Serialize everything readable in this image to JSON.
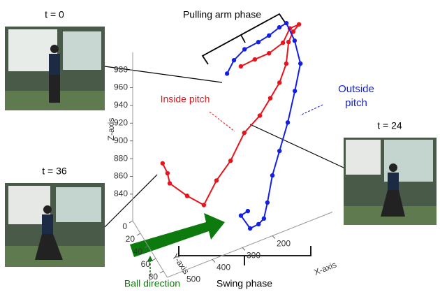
{
  "chart_data": {
    "type": "line3d",
    "xlabel": "X-axis",
    "ylabel": "Y-axis",
    "zlabel": "Z-axis",
    "xlim": [
      0,
      550
    ],
    "ylim": [
      0,
      90
    ],
    "zlim": [
      810,
      1000
    ],
    "xticks": [
      200,
      300,
      400,
      500
    ],
    "yticks": [
      0,
      20,
      40,
      60,
      80
    ],
    "zticks": [
      840,
      860,
      880,
      900,
      920,
      940,
      960,
      980
    ],
    "series": [
      {
        "name": "Inside pitch",
        "color": "#e8141c",
        "x": [
          209,
          169,
          128,
          88,
          78,
          41,
          54,
          63,
          77,
          106,
          143,
          178,
          236,
          288,
          335,
          377,
          420,
          465,
          466,
          476
        ],
        "y": [
          15,
          20,
          25,
          30,
          40,
          35,
          30,
          25,
          30,
          35,
          40,
          40,
          45,
          50,
          50,
          50,
          40,
          30,
          25,
          20
        ],
        "z": [
          949,
          955,
          960,
          970,
          992,
          988,
          978,
          964,
          945,
          931,
          922,
          907,
          899,
          878,
          862,
          840,
          849,
          862,
          870,
          879
        ]
      },
      {
        "name": "Outside pitch",
        "color": "#1420e0",
        "x": [
          255,
          232,
          203,
          157,
          128,
          100,
          83,
          62,
          49,
          74,
          104,
          138,
          168,
          191,
          209,
          227,
          255,
          292,
          269
        ],
        "y": [
          15,
          15,
          20,
          20,
          25,
          30,
          35,
          40,
          45,
          50,
          55,
          60,
          65,
          70,
          75,
          75,
          75,
          80,
          80
        ],
        "z": [
          947,
          959,
          971,
          973,
          980,
          989,
          995,
          976,
          952,
          928,
          900,
          876,
          856,
          832,
          820,
          816,
          815,
          838,
          840
        ]
      }
    ],
    "annotations": {
      "pulling": "Pulling arm phase",
      "swing": "Swing phase",
      "ball": "Ball direction",
      "t0": "t = 0",
      "t36": "t = 36",
      "t24": "t = 24"
    }
  }
}
